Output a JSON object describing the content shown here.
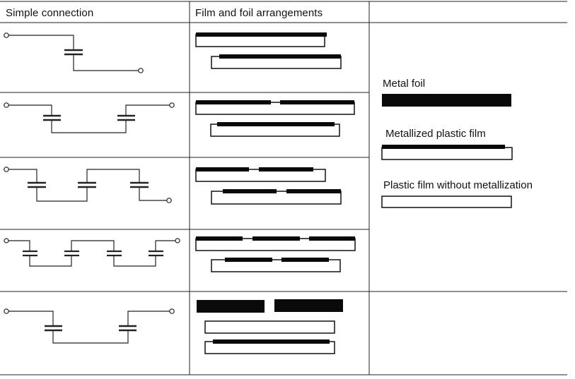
{
  "table": {
    "headers": [
      "Simple connection",
      "Film and foil arrangements",
      ""
    ]
  },
  "legend": {
    "metal_foil": "Metal foil",
    "metallized_film": "Metallized plastic film",
    "plastic_film": "Plastic film without metallization"
  },
  "rows": [
    {
      "series_capacitors": 1
    },
    {
      "series_capacitors": 2
    },
    {
      "series_capacitors": 3
    },
    {
      "series_capacitors": 4
    },
    {
      "series_capacitors": 2
    }
  ],
  "colors": {
    "line": "#222222",
    "ink": "#0a0a0a",
    "background": "#ffffff"
  }
}
